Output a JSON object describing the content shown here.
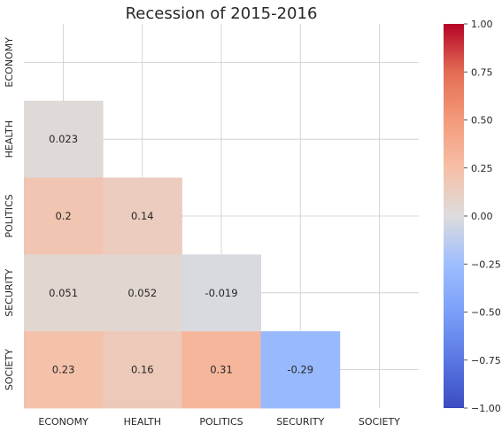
{
  "chart_data": {
    "type": "heatmap",
    "title": "Recession of 2015-2016",
    "categories": [
      "ECONOMY",
      "HEALTH",
      "POLITICS",
      "SECURITY",
      "SOCIETY"
    ],
    "mask": "upper-triangle",
    "values": [
      [
        null,
        null,
        null,
        null,
        null
      ],
      [
        "0.023",
        null,
        null,
        null,
        null
      ],
      [
        "0.2",
        "0.14",
        null,
        null,
        null
      ],
      [
        "0.051",
        "0.052",
        "-0.019",
        null,
        null
      ],
      [
        "0.23",
        "0.16",
        "0.31",
        "-0.29",
        null
      ]
    ],
    "colormap": "coolwarm",
    "vmin": -1.0,
    "vmax": 1.0,
    "colorbar_ticks": [
      "1.00",
      "0.75",
      "0.50",
      "0.25",
      "0.00",
      "−0.25",
      "−0.50",
      "−0.75",
      "−1.00"
    ],
    "grid": true
  }
}
